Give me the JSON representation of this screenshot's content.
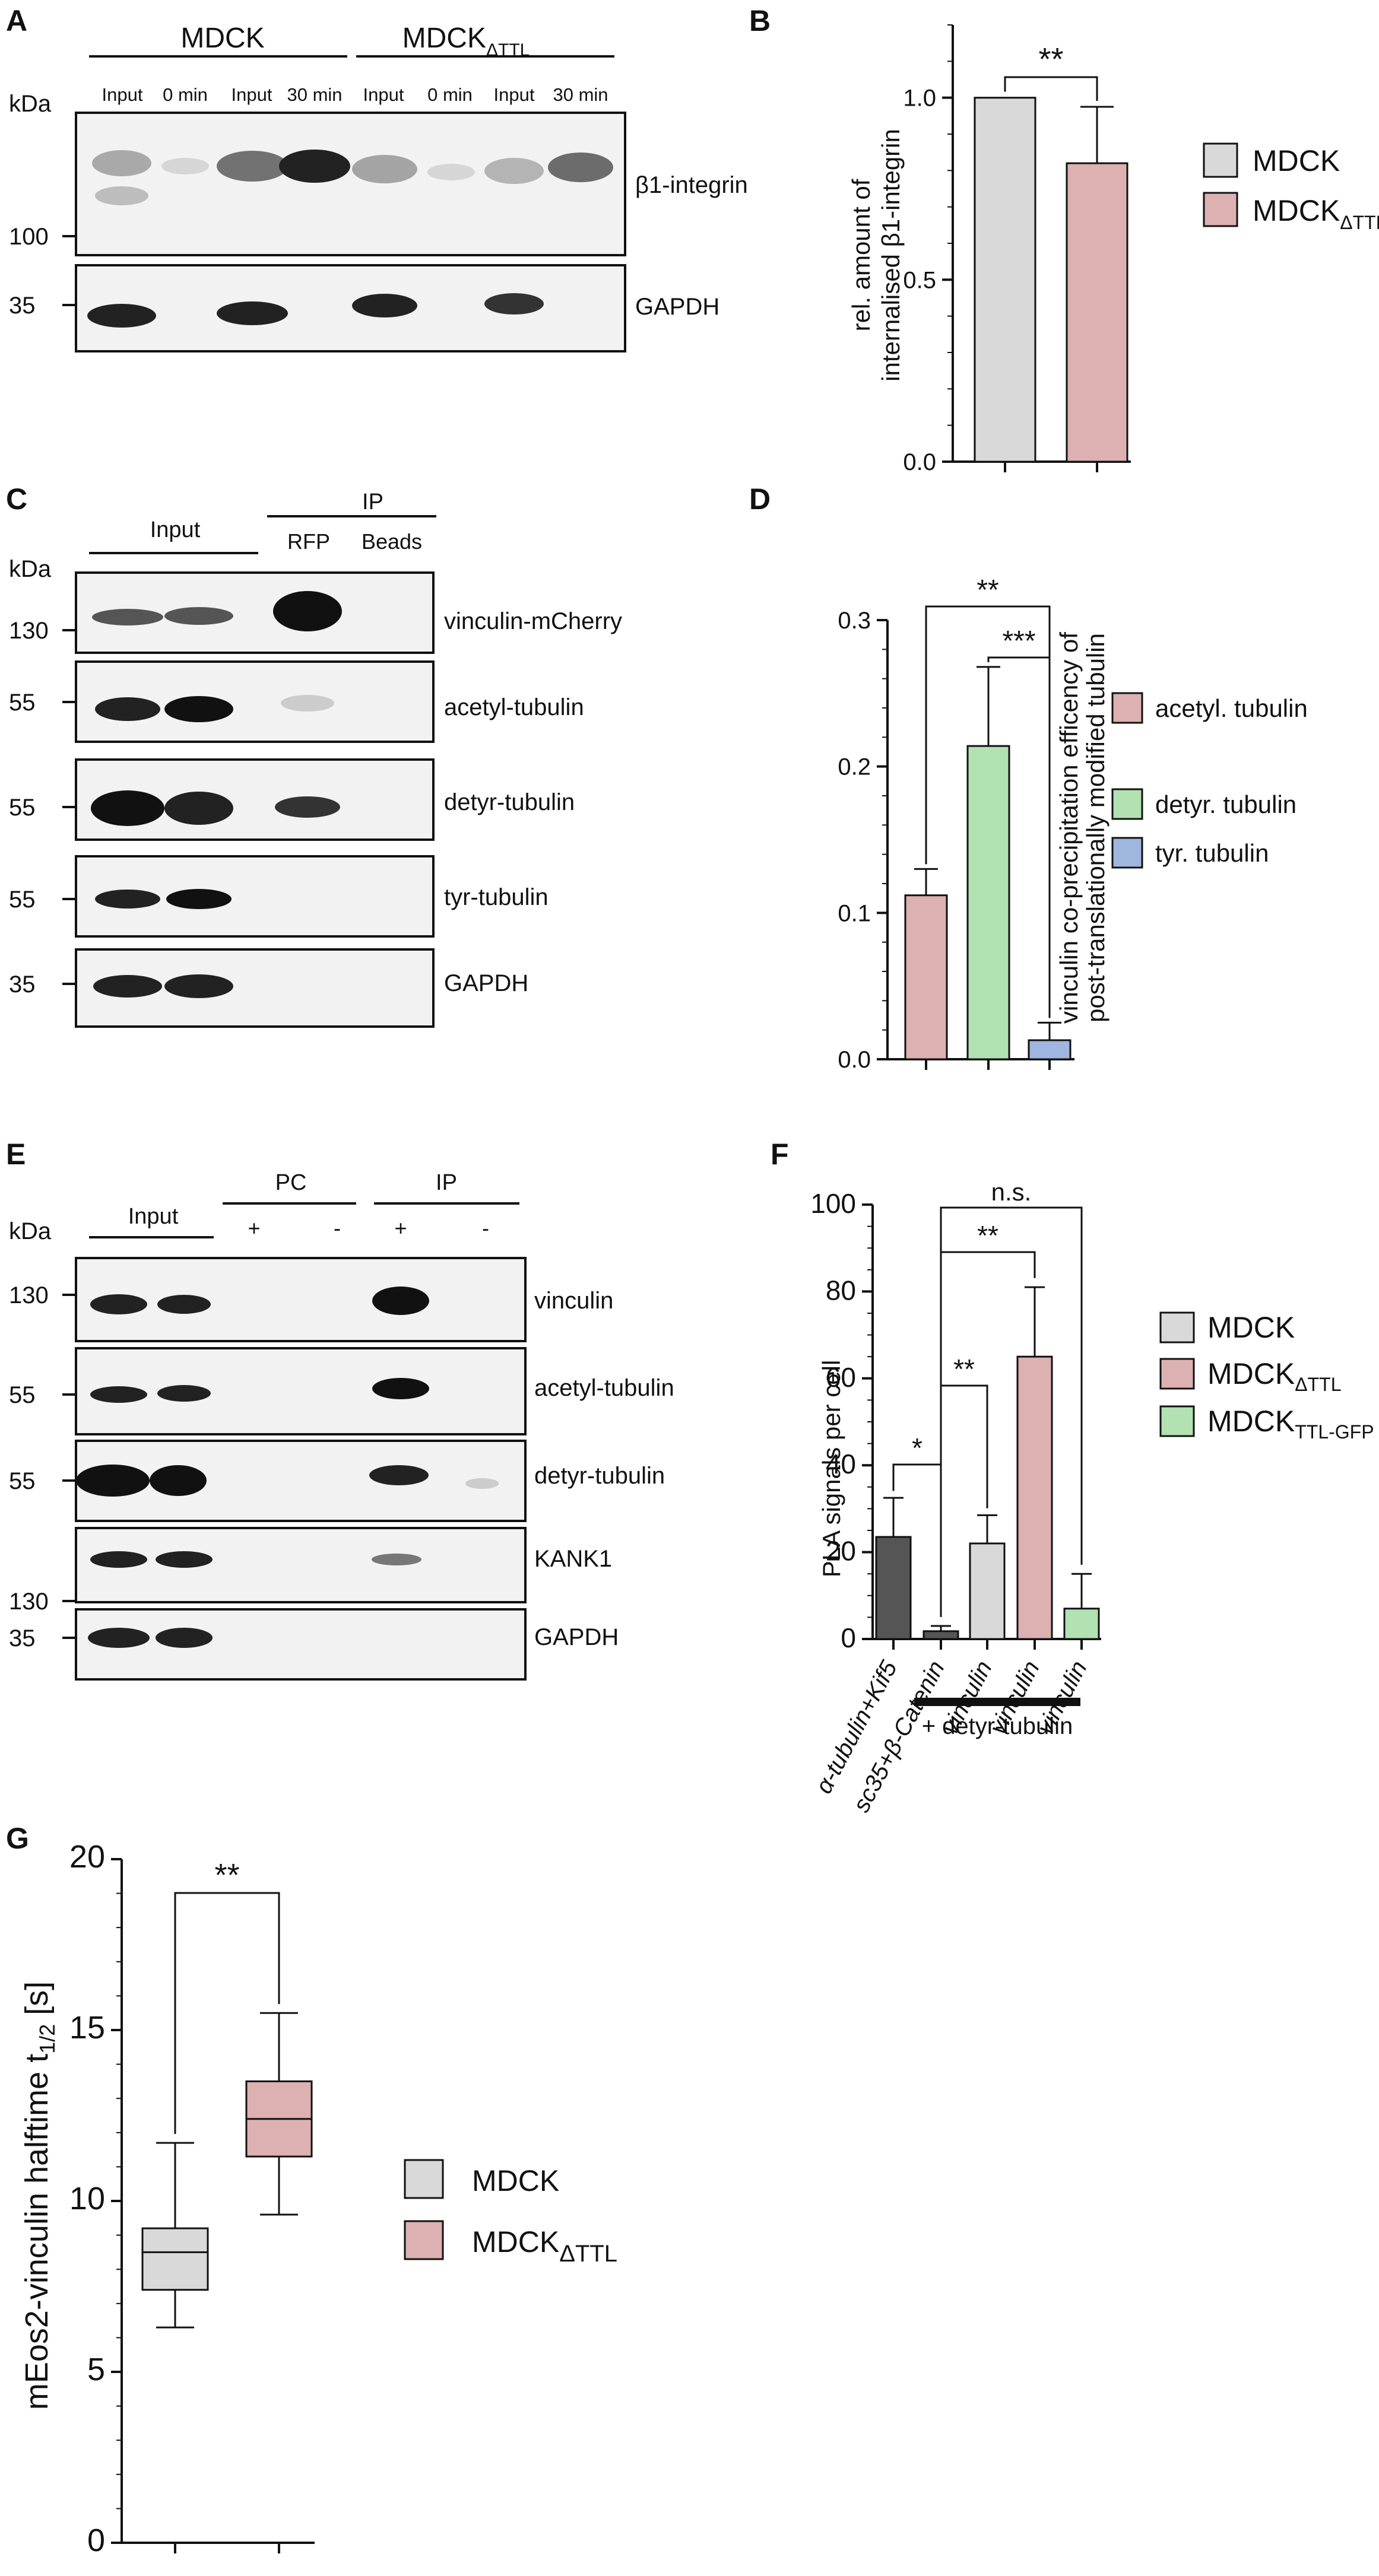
{
  "panelA": {
    "letter": "A",
    "group1": "MDCK",
    "group2": {
      "main": "MDCK",
      "sub": "ΔTTL"
    },
    "lanes": [
      "Input",
      "0 min",
      "Input",
      "30 min",
      "Input",
      "0 min",
      "Input",
      "30 min"
    ],
    "kda": "kDa",
    "markers": [
      "100",
      "35"
    ],
    "proteins": [
      "β1-integrin",
      "GAPDH"
    ]
  },
  "panelB": {
    "letter": "B",
    "ylabel_line1": "rel. amount of",
    "ylabel_line2": "internalised β1-integrin",
    "legend": [
      {
        "main": "MDCK",
        "sub": "",
        "color": "#d9d9d9"
      },
      {
        "main": "MDCK",
        "sub": "ΔTTL",
        "color": "#ddb1b1"
      }
    ],
    "sig": "**",
    "chart_data": {
      "type": "bar",
      "categories": [
        "MDCK",
        "MDCKΔTTL"
      ],
      "values": [
        1.0,
        0.82
      ],
      "errors": [
        0,
        0.155
      ],
      "yticks": [
        "0.0",
        "0.5",
        "1.0"
      ],
      "ylim": [
        0,
        1.2
      ]
    }
  },
  "panelC": {
    "letter": "C",
    "input": "Input",
    "ip": "IP",
    "rfp": "RFP",
    "beads": "Beads",
    "kda": "kDa",
    "markers": [
      "130",
      "55",
      "55",
      "55",
      "35"
    ],
    "proteins": [
      "vinculin-mCherry",
      "acetyl-tubulin",
      "detyr-tubulin",
      "tyr-tubulin",
      "GAPDH"
    ]
  },
  "panelD": {
    "letter": "D",
    "ylabel_line1": "vinculin co-precipitation efficency of",
    "ylabel_line2": "post-translationally modified tubulin",
    "legend": [
      {
        "label": "acetyl. tubulin",
        "color": "#ddb1b1"
      },
      {
        "label": "detyr. tubulin",
        "color": "#b2e1b2"
      },
      {
        "label": "tyr. tubulin",
        "color": "#9fb6df"
      }
    ],
    "sig": [
      "**",
      "***"
    ],
    "chart_data": {
      "type": "bar",
      "categories": [
        "acetyl. tubulin",
        "detyr. tubulin",
        "tyr. tubulin"
      ],
      "values": [
        0.112,
        0.214,
        0.013
      ],
      "errors": [
        0.018,
        0.054,
        0.012
      ],
      "yticks": [
        "0.0",
        "0.1",
        "0.2",
        "0.3"
      ],
      "ylim": [
        0,
        0.3
      ]
    }
  },
  "panelE": {
    "letter": "E",
    "input": "Input",
    "pc": "PC",
    "ip": "IP",
    "plus": "+",
    "minus": "-",
    "kda": "kDa",
    "markers": [
      "130",
      "55",
      "55",
      "130",
      "35"
    ],
    "proteins": [
      "vinculin",
      "acetyl-tubulin",
      "detyr-tubulin",
      "KANK1",
      "GAPDH"
    ]
  },
  "panelF": {
    "letter": "F",
    "ylabel": "PLA signals per cell",
    "bracket_label": "+ detyr-tubulin",
    "legend": [
      {
        "main": "MDCK",
        "sub": "",
        "color": "#d9d9d9"
      },
      {
        "main": "MDCK",
        "sub": "ΔTTL",
        "color": "#ddb1b1"
      },
      {
        "main": "MDCK",
        "sub": "TTL-GFP",
        "color": "#b2e1b2"
      }
    ],
    "sig": [
      "*",
      "**",
      "**",
      "n.s."
    ],
    "chart_data": {
      "type": "bar",
      "categories": [
        "α-tubulin+Kif5",
        "sc35+β-Catenin",
        "vinculin",
        "vinculin",
        "vinculin"
      ],
      "values": [
        23.5,
        1.8,
        22,
        65,
        7
      ],
      "errors": [
        9,
        1.2,
        6.5,
        16,
        8
      ],
      "yticks": [
        "0",
        "20",
        "40",
        "60",
        "80",
        "100"
      ],
      "ylim": [
        0,
        100
      ]
    }
  },
  "panelG": {
    "letter": "G",
    "ylabel_main": "mEos2-vinculin halftime t",
    "ylabel_sub": "1/2",
    "ylabel_unit": "[s]",
    "legend": [
      {
        "main": "MDCK",
        "sub": "",
        "color": "#d9d9d9"
      },
      {
        "main": "MDCK",
        "sub": "ΔTTL",
        "color": "#ddb1b1"
      }
    ],
    "sig": "**",
    "chart_data": {
      "type": "box",
      "categories": [
        "MDCK",
        "MDCKΔTTL"
      ],
      "boxes": [
        {
          "min": 6.3,
          "q1": 7.4,
          "median": 8.5,
          "q3": 9.2,
          "max": 11.7
        },
        {
          "min": 9.6,
          "q1": 11.3,
          "median": 12.4,
          "q3": 13.5,
          "max": 15.5
        }
      ],
      "yticks": [
        "0",
        "5",
        "10",
        "15",
        "20"
      ],
      "ylim": [
        0,
        20
      ]
    }
  }
}
